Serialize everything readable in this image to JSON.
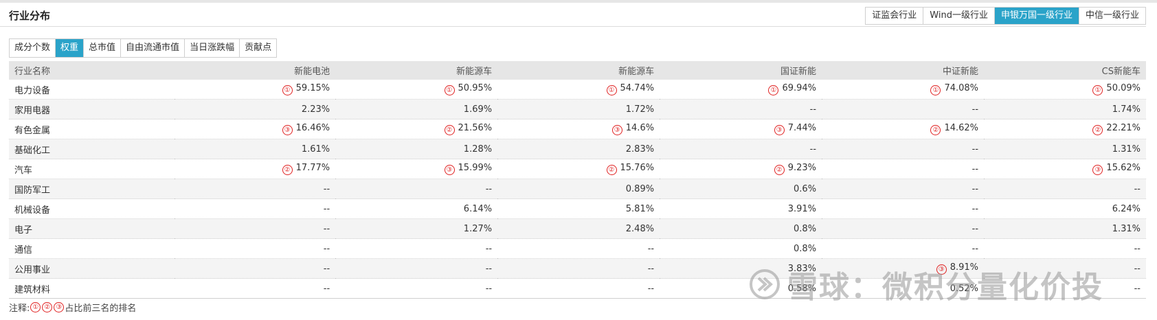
{
  "header": {
    "title": "行业分布",
    "classification_tabs": [
      {
        "label": "证监会行业",
        "active": false
      },
      {
        "label": "Wind一级行业",
        "active": false
      },
      {
        "label": "申银万国一级行业",
        "active": true
      },
      {
        "label": "中信一级行业",
        "active": false
      }
    ]
  },
  "metric_tabs": [
    {
      "label": "成分个数",
      "active": false
    },
    {
      "label": "权重",
      "active": true
    },
    {
      "label": "总市值",
      "active": false
    },
    {
      "label": "自由流通市值",
      "active": false
    },
    {
      "label": "当日涨跌幅",
      "active": false
    },
    {
      "label": "贡献点",
      "active": false
    }
  ],
  "table": {
    "columns": [
      "行业名称",
      "新能电池",
      "新能源车",
      "新能源车",
      "国证新能",
      "中证新能",
      "CS新能车"
    ],
    "rows": [
      {
        "name": "电力设备",
        "cells": [
          {
            "v": "59.15%",
            "r": "①"
          },
          {
            "v": "50.95%",
            "r": "①"
          },
          {
            "v": "54.74%",
            "r": "①"
          },
          {
            "v": "69.94%",
            "r": "①"
          },
          {
            "v": "74.08%",
            "r": "①"
          },
          {
            "v": "50.09%",
            "r": "①"
          }
        ]
      },
      {
        "name": "家用电器",
        "cells": [
          {
            "v": "2.23%",
            "r": ""
          },
          {
            "v": "1.69%",
            "r": ""
          },
          {
            "v": "1.72%",
            "r": ""
          },
          {
            "v": "--",
            "r": ""
          },
          {
            "v": "--",
            "r": ""
          },
          {
            "v": "1.74%",
            "r": ""
          }
        ]
      },
      {
        "name": "有色金属",
        "cells": [
          {
            "v": "16.46%",
            "r": "③"
          },
          {
            "v": "21.56%",
            "r": "②"
          },
          {
            "v": "14.6%",
            "r": "③"
          },
          {
            "v": "7.44%",
            "r": "③"
          },
          {
            "v": "14.62%",
            "r": "②"
          },
          {
            "v": "22.21%",
            "r": "②"
          }
        ]
      },
      {
        "name": "基础化工",
        "cells": [
          {
            "v": "1.61%",
            "r": ""
          },
          {
            "v": "1.28%",
            "r": ""
          },
          {
            "v": "2.83%",
            "r": ""
          },
          {
            "v": "--",
            "r": ""
          },
          {
            "v": "--",
            "r": ""
          },
          {
            "v": "1.31%",
            "r": ""
          }
        ]
      },
      {
        "name": "汽车",
        "cells": [
          {
            "v": "17.77%",
            "r": "②"
          },
          {
            "v": "15.99%",
            "r": "③"
          },
          {
            "v": "15.76%",
            "r": "②"
          },
          {
            "v": "9.23%",
            "r": "②"
          },
          {
            "v": "--",
            "r": ""
          },
          {
            "v": "15.62%",
            "r": "③"
          }
        ]
      },
      {
        "name": "国防军工",
        "cells": [
          {
            "v": "--",
            "r": ""
          },
          {
            "v": "--",
            "r": ""
          },
          {
            "v": "0.89%",
            "r": ""
          },
          {
            "v": "0.6%",
            "r": ""
          },
          {
            "v": "--",
            "r": ""
          },
          {
            "v": "--",
            "r": ""
          }
        ]
      },
      {
        "name": "机械设备",
        "cells": [
          {
            "v": "--",
            "r": ""
          },
          {
            "v": "6.14%",
            "r": ""
          },
          {
            "v": "5.81%",
            "r": ""
          },
          {
            "v": "3.91%",
            "r": ""
          },
          {
            "v": "--",
            "r": ""
          },
          {
            "v": "6.24%",
            "r": ""
          }
        ]
      },
      {
        "name": "电子",
        "cells": [
          {
            "v": "--",
            "r": ""
          },
          {
            "v": "1.27%",
            "r": ""
          },
          {
            "v": "2.48%",
            "r": ""
          },
          {
            "v": "0.8%",
            "r": ""
          },
          {
            "v": "--",
            "r": ""
          },
          {
            "v": "1.31%",
            "r": ""
          }
        ]
      },
      {
        "name": "通信",
        "cells": [
          {
            "v": "--",
            "r": ""
          },
          {
            "v": "--",
            "r": ""
          },
          {
            "v": "--",
            "r": ""
          },
          {
            "v": "0.8%",
            "r": ""
          },
          {
            "v": "--",
            "r": ""
          },
          {
            "v": "--",
            "r": ""
          }
        ]
      },
      {
        "name": "公用事业",
        "cells": [
          {
            "v": "--",
            "r": ""
          },
          {
            "v": "--",
            "r": ""
          },
          {
            "v": "--",
            "r": ""
          },
          {
            "v": "3.83%",
            "r": ""
          },
          {
            "v": "8.91%",
            "r": "③"
          },
          {
            "v": "--",
            "r": ""
          }
        ]
      },
      {
        "name": "建筑材料",
        "cells": [
          {
            "v": "--",
            "r": ""
          },
          {
            "v": "--",
            "r": ""
          },
          {
            "v": "--",
            "r": ""
          },
          {
            "v": "0.58%",
            "r": ""
          },
          {
            "v": "0.52%",
            "r": ""
          },
          {
            "v": "--",
            "r": ""
          }
        ]
      }
    ]
  },
  "note": {
    "prefix": "注释:",
    "marks": [
      "①",
      "②",
      "③"
    ],
    "suffix": "占比前三名的排名"
  },
  "watermark": {
    "text": "雪球：微积分量化价投",
    "icon": "xueqiu-logo-icon"
  },
  "colors": {
    "accent": "#2aa3c9",
    "rank": "#e02020",
    "header_bg": "#e6e6e6",
    "zebra": "#f4f4f4"
  }
}
